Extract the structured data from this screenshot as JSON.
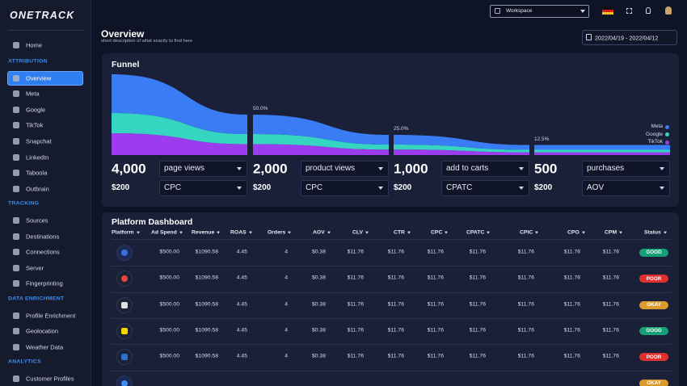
{
  "sidebar": {
    "logo": "ONETRACK",
    "home": "Home",
    "active": {
      "section": 0,
      "item": 0
    },
    "sections": [
      {
        "title": "ATTRIBUTION",
        "items": [
          "Overview",
          "Meta",
          "Google",
          "TikTok",
          "Snapchat",
          "LinkedIn",
          "Taboola",
          "Outbrain"
        ]
      },
      {
        "title": "TRACKING",
        "items": [
          "Sources",
          "Destinations",
          "Connections",
          "Server",
          "Fingerprinting"
        ]
      },
      {
        "title": "DATA ENRICHMENT",
        "items": [
          "Profile Enrichment",
          "Geolocation",
          "Weather Data"
        ]
      },
      {
        "title": "ANALYTICS",
        "items": [
          "Customer Profiles"
        ]
      }
    ]
  },
  "topbar": {
    "workspace": "Workspace"
  },
  "header": {
    "title": "Overview",
    "subtitle": "short description of what exactly to find here",
    "date_range": "2022/04/19 - 2022/04/12"
  },
  "funnel": {
    "title": "Funnel",
    "legend": [
      {
        "name": "Meta",
        "color": "#3a7cf4"
      },
      {
        "name": "Google",
        "color": "#35d5c2"
      },
      {
        "name": "TikTok",
        "color": "#9b3cef"
      }
    ],
    "stages": [
      {
        "value": 4000,
        "value_label": "4,000",
        "metric": "page views",
        "cost": "$200",
        "cost_metric": "CPC"
      },
      {
        "value": 2000,
        "value_label": "2,000",
        "percent_label": "50.0%",
        "metric": "product views",
        "cost": "$200",
        "cost_metric": "CPC"
      },
      {
        "value": 1000,
        "value_label": "1,000",
        "percent_label": "25.0%",
        "metric": "add to carts",
        "cost": "$200",
        "cost_metric": "CPATC"
      },
      {
        "value": 500,
        "value_label": "500",
        "percent_label": "12.5%",
        "metric": "purchases",
        "cost": "$200",
        "cost_metric": "AOV"
      }
    ]
  },
  "dashboard": {
    "title": "Platform Dashboard",
    "columns": [
      "Platform",
      "Ad Spend",
      "Revenue",
      "ROAS",
      "Orders",
      "AOV",
      "CLV",
      "CTR",
      "CPC",
      "CPATC",
      "CPIC",
      "CPO",
      "CPM",
      "Status"
    ],
    "rows": [
      {
        "cells": [
          "$500.00",
          "$1090.58",
          "4.45",
          "4",
          "$0.38",
          "$11.76",
          "$11.76",
          "$11.76",
          "$11.76",
          "$11.76",
          "$11.76",
          "$11.76"
        ],
        "status": "GOOD",
        "status_color": "#179f78"
      },
      {
        "cells": [
          "$500.00",
          "$1090.58",
          "4.45",
          "4",
          "$0.38",
          "$11.76",
          "$11.76",
          "$11.76",
          "$11.76",
          "$11.76",
          "$11.76",
          "$11.76"
        ],
        "status": "POOR",
        "status_color": "#e0302e"
      },
      {
        "cells": [
          "$500.00",
          "$1090.58",
          "4.45",
          "4",
          "$0.38",
          "$11.76",
          "$11.76",
          "$11.76",
          "$11.76",
          "$11.76",
          "$11.76",
          "$11.76"
        ],
        "status": "OKAY",
        "status_color": "#dc9a2c"
      },
      {
        "cells": [
          "$500.00",
          "$1090.58",
          "4.45",
          "4",
          "$0.38",
          "$11.76",
          "$11.76",
          "$11.76",
          "$11.76",
          "$11.76",
          "$11.76",
          "$11.76"
        ],
        "status": "GOOD",
        "status_color": "#179f78"
      },
      {
        "cells": [
          "$500.00",
          "$1090.58",
          "4.45",
          "4",
          "$0.38",
          "$11.76",
          "$11.76",
          "$11.76",
          "$11.76",
          "$11.76",
          "$11.76",
          "$11.76"
        ],
        "status": "POOR",
        "status_color": "#e0302e"
      },
      {
        "status": "OKAY",
        "status_color": "#dc9a2c"
      }
    ]
  }
}
